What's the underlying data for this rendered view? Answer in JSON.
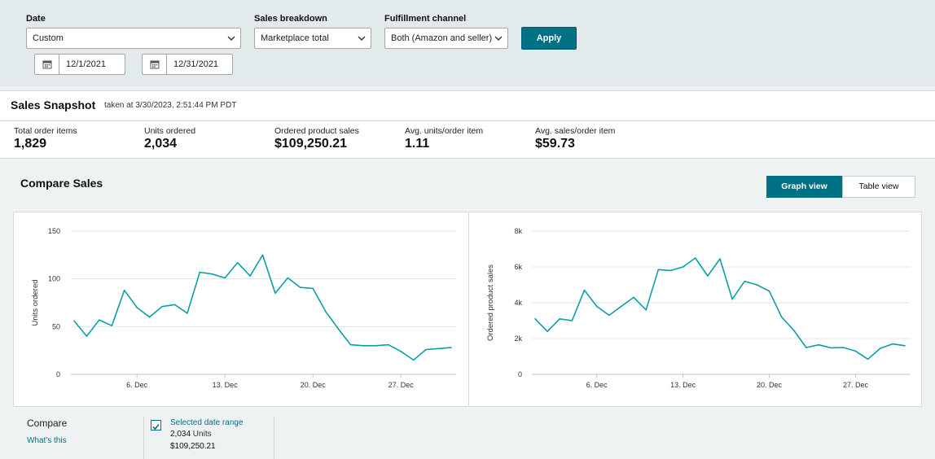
{
  "filters": {
    "date_label": "Date",
    "date_value": "Custom",
    "start_date": "12/1/2021",
    "end_date": "12/31/2021",
    "breakdown_label": "Sales breakdown",
    "breakdown_value": "Marketplace total",
    "channel_label": "Fulfillment channel",
    "channel_value": "Both (Amazon and seller)",
    "apply_label": "Apply"
  },
  "snapshot": {
    "title": "Sales Snapshot",
    "taken_at": "taken at 3/30/2023, 2:51:44 PM PDT",
    "metrics": [
      {
        "label": "Total order items",
        "value": "1,829"
      },
      {
        "label": "Units ordered",
        "value": "2,034"
      },
      {
        "label": "Ordered product sales",
        "value": "$109,250.21"
      },
      {
        "label": "Avg. units/order item",
        "value": "1.11"
      },
      {
        "label": "Avg. sales/order item",
        "value": "$59.73"
      }
    ]
  },
  "compare": {
    "title": "Compare Sales",
    "graph_view_label": "Graph view",
    "table_view_label": "Table view",
    "compare_label": "Compare",
    "whats_this": "What's this",
    "range_label": "Selected date range",
    "range_units_value": "2,034",
    "range_units_suffix": " Units",
    "range_sales": "$109,250.21",
    "accent_color": "#0c9fa6"
  },
  "chart_data": [
    {
      "type": "line",
      "title": "",
      "xlabel": "",
      "ylabel": "Units ordered",
      "x": [
        "1. Dec",
        "2. Dec",
        "3. Dec",
        "4. Dec",
        "5. Dec",
        "6. Dec",
        "7. Dec",
        "8. Dec",
        "9. Dec",
        "10. Dec",
        "11. Dec",
        "12. Dec",
        "13. Dec",
        "14. Dec",
        "15. Dec",
        "16. Dec",
        "17. Dec",
        "18. Dec",
        "19. Dec",
        "20. Dec",
        "21. Dec",
        "22. Dec",
        "23. Dec",
        "24. Dec",
        "25. Dec",
        "26. Dec",
        "27. Dec",
        "28. Dec",
        "29. Dec",
        "30. Dec",
        "31. Dec"
      ],
      "x_ticks": [
        {
          "i": 5,
          "label": "6. Dec"
        },
        {
          "i": 12,
          "label": "13. Dec"
        },
        {
          "i": 19,
          "label": "20. Dec"
        },
        {
          "i": 26,
          "label": "27. Dec"
        }
      ],
      "y_ticks": [
        {
          "v": 0,
          "label": "0"
        },
        {
          "v": 50,
          "label": "50"
        },
        {
          "v": 100,
          "label": "100"
        },
        {
          "v": 150,
          "label": "150"
        }
      ],
      "ylim": [
        0,
        150
      ],
      "grid": true,
      "series": [
        {
          "values": [
            56,
            40,
            57,
            51,
            88,
            70,
            60,
            71,
            73,
            64,
            107,
            105,
            101,
            117,
            103,
            125,
            85,
            101,
            91,
            90,
            66,
            48,
            31,
            30,
            30,
            31,
            24,
            15,
            26,
            27,
            28
          ]
        }
      ]
    },
    {
      "type": "line",
      "title": "",
      "xlabel": "",
      "ylabel": "Ordered product sales",
      "x": [
        "1. Dec",
        "2. Dec",
        "3. Dec",
        "4. Dec",
        "5. Dec",
        "6. Dec",
        "7. Dec",
        "8. Dec",
        "9. Dec",
        "10. Dec",
        "11. Dec",
        "12. Dec",
        "13. Dec",
        "14. Dec",
        "15. Dec",
        "16. Dec",
        "17. Dec",
        "18. Dec",
        "19. Dec",
        "20. Dec",
        "21. Dec",
        "22. Dec",
        "23. Dec",
        "24. Dec",
        "25. Dec",
        "26. Dec",
        "27. Dec",
        "28. Dec",
        "29. Dec",
        "30. Dec",
        "31. Dec"
      ],
      "x_ticks": [
        {
          "i": 5,
          "label": "6. Dec"
        },
        {
          "i": 12,
          "label": "13. Dec"
        },
        {
          "i": 19,
          "label": "20. Dec"
        },
        {
          "i": 26,
          "label": "27. Dec"
        }
      ],
      "y_ticks": [
        {
          "v": 0,
          "label": "0"
        },
        {
          "v": 2000,
          "label": "2k"
        },
        {
          "v": 4000,
          "label": "4k"
        },
        {
          "v": 6000,
          "label": "6k"
        },
        {
          "v": 8000,
          "label": "8k"
        }
      ],
      "ylim": [
        0,
        8000
      ],
      "grid": true,
      "series": [
        {
          "values": [
            3100,
            2400,
            3100,
            3000,
            4700,
            3800,
            3300,
            3800,
            4300,
            3600,
            5850,
            5800,
            6000,
            6500,
            5500,
            6450,
            4200,
            5200,
            5000,
            4650,
            3200,
            2450,
            1500,
            1650,
            1480,
            1500,
            1300,
            850,
            1450,
            1700,
            1600
          ]
        }
      ]
    }
  ]
}
